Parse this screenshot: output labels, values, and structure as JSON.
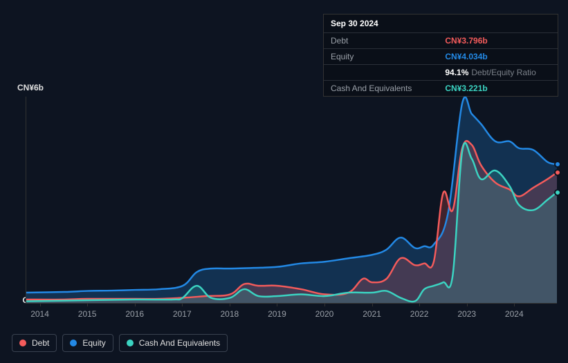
{
  "tooltip": {
    "date": "Sep 30 2024",
    "rows": [
      {
        "label": "Debt",
        "value": "CN¥3.796b",
        "color": "#f45b5b"
      },
      {
        "label": "Equity",
        "value": "CN¥4.034b",
        "color": "#2389e5"
      },
      {
        "label": "",
        "value": "94.1%",
        "ratio_label": "Debt/Equity Ratio",
        "color": "#ffffff",
        "is_ratio": true
      },
      {
        "label": "Cash And Equivalents",
        "value": "CN¥3.221b",
        "color": "#3bd4c2"
      }
    ]
  },
  "chart": {
    "type": "area-line",
    "background_color": "#0d1421",
    "grid_color": "#333333",
    "label_color": "#e0e0e0",
    "axis_fontsize": 12,
    "y_labels": [
      {
        "text": "CN¥6b",
        "value": 6
      },
      {
        "text": "CN¥0",
        "value": 0
      }
    ],
    "ylim": [
      0,
      6
    ],
    "xlim": [
      2013.7,
      2024.9
    ],
    "x_ticks": [
      2014,
      2015,
      2016,
      2017,
      2018,
      2019,
      2020,
      2021,
      2022,
      2023,
      2024
    ],
    "series": [
      {
        "name": "Equity",
        "color": "#2389e5",
        "fill_opacity": 0.25,
        "line_width": 2.5,
        "points": [
          [
            2013.7,
            0.3
          ],
          [
            2014.5,
            0.32
          ],
          [
            2015,
            0.35
          ],
          [
            2015.5,
            0.36
          ],
          [
            2016,
            0.38
          ],
          [
            2016.5,
            0.4
          ],
          [
            2017,
            0.5
          ],
          [
            2017.3,
            0.9
          ],
          [
            2017.6,
            1.0
          ],
          [
            2018,
            1.0
          ],
          [
            2018.5,
            1.02
          ],
          [
            2019,
            1.05
          ],
          [
            2019.5,
            1.15
          ],
          [
            2020,
            1.2
          ],
          [
            2020.5,
            1.3
          ],
          [
            2021,
            1.4
          ],
          [
            2021.3,
            1.55
          ],
          [
            2021.6,
            1.9
          ],
          [
            2021.9,
            1.6
          ],
          [
            2022.1,
            1.65
          ],
          [
            2022.3,
            1.7
          ],
          [
            2022.6,
            2.6
          ],
          [
            2022.9,
            5.8
          ],
          [
            2023.1,
            5.5
          ],
          [
            2023.3,
            5.2
          ],
          [
            2023.6,
            4.7
          ],
          [
            2023.9,
            4.7
          ],
          [
            2024.1,
            4.5
          ],
          [
            2024.4,
            4.45
          ],
          [
            2024.7,
            4.1
          ],
          [
            2024.9,
            4.034
          ]
        ]
      },
      {
        "name": "Debt",
        "color": "#f45b5b",
        "fill_opacity": 0.22,
        "line_width": 2.5,
        "points": [
          [
            2013.7,
            0.1
          ],
          [
            2014.5,
            0.1
          ],
          [
            2015,
            0.12
          ],
          [
            2016,
            0.12
          ],
          [
            2016.5,
            0.12
          ],
          [
            2017,
            0.15
          ],
          [
            2017.5,
            0.2
          ],
          [
            2018,
            0.25
          ],
          [
            2018.3,
            0.55
          ],
          [
            2018.6,
            0.5
          ],
          [
            2019,
            0.5
          ],
          [
            2019.5,
            0.4
          ],
          [
            2020,
            0.25
          ],
          [
            2020.5,
            0.3
          ],
          [
            2020.8,
            0.7
          ],
          [
            2021,
            0.6
          ],
          [
            2021.3,
            0.7
          ],
          [
            2021.6,
            1.3
          ],
          [
            2021.9,
            1.1
          ],
          [
            2022.1,
            1.15
          ],
          [
            2022.3,
            1.2
          ],
          [
            2022.5,
            3.2
          ],
          [
            2022.7,
            2.7
          ],
          [
            2022.9,
            4.5
          ],
          [
            2023.1,
            4.6
          ],
          [
            2023.3,
            4.0
          ],
          [
            2023.6,
            3.5
          ],
          [
            2023.9,
            3.3
          ],
          [
            2024.1,
            3.1
          ],
          [
            2024.4,
            3.35
          ],
          [
            2024.7,
            3.6
          ],
          [
            2024.9,
            3.796
          ]
        ]
      },
      {
        "name": "Cash And Equivalents",
        "color": "#3bd4c2",
        "fill_opacity": 0.18,
        "line_width": 2.5,
        "points": [
          [
            2013.7,
            0.05
          ],
          [
            2015,
            0.08
          ],
          [
            2016,
            0.1
          ],
          [
            2016.8,
            0.1
          ],
          [
            2017,
            0.15
          ],
          [
            2017.3,
            0.5
          ],
          [
            2017.6,
            0.15
          ],
          [
            2018,
            0.15
          ],
          [
            2018.3,
            0.4
          ],
          [
            2018.6,
            0.2
          ],
          [
            2019,
            0.2
          ],
          [
            2019.5,
            0.25
          ],
          [
            2020,
            0.2
          ],
          [
            2020.5,
            0.3
          ],
          [
            2021,
            0.3
          ],
          [
            2021.3,
            0.35
          ],
          [
            2021.6,
            0.15
          ],
          [
            2021.9,
            0.05
          ],
          [
            2022.1,
            0.4
          ],
          [
            2022.3,
            0.5
          ],
          [
            2022.5,
            0.6
          ],
          [
            2022.7,
            0.8
          ],
          [
            2022.9,
            4.4
          ],
          [
            2023.1,
            4.2
          ],
          [
            2023.3,
            3.6
          ],
          [
            2023.6,
            3.85
          ],
          [
            2023.9,
            3.4
          ],
          [
            2024.1,
            2.85
          ],
          [
            2024.4,
            2.7
          ],
          [
            2024.7,
            3.0
          ],
          [
            2024.9,
            3.221
          ]
        ]
      }
    ]
  },
  "legend": {
    "items": [
      {
        "label": "Debt",
        "color": "#f45b5b"
      },
      {
        "label": "Equity",
        "color": "#2389e5"
      },
      {
        "label": "Cash And Equivalents",
        "color": "#3bd4c2"
      }
    ]
  }
}
